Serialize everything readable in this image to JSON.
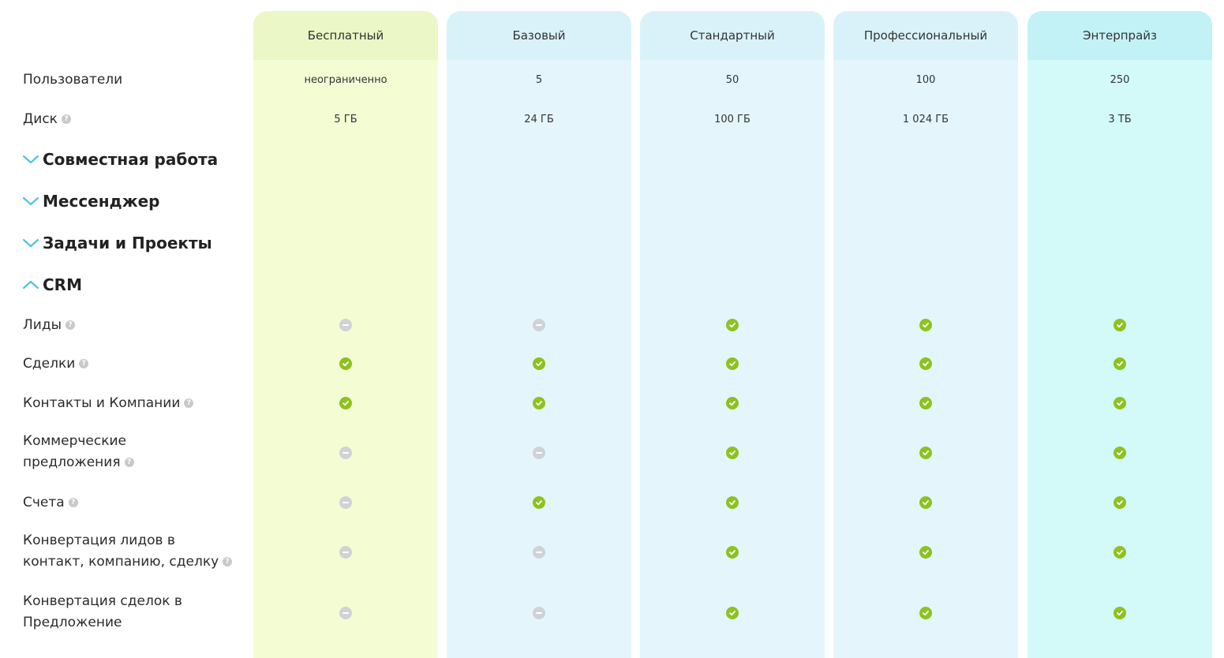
{
  "plans": [
    {
      "label": "Бесплатный"
    },
    {
      "label": "Базовый"
    },
    {
      "label": "Стандартный"
    },
    {
      "label": "Профессиональный"
    },
    {
      "label": "Энтерпрайз"
    }
  ],
  "rows": {
    "users": {
      "label": "Пользователи",
      "values": [
        "неограниченно",
        "5",
        "50",
        "100",
        "250"
      ]
    },
    "disk": {
      "label": "Диск",
      "values": [
        "5 ГБ",
        "24 ГБ",
        "100 ГБ",
        "1 024 ГБ",
        "3 ТБ"
      ]
    }
  },
  "sections": [
    {
      "label": "Совместная работа",
      "expanded": false
    },
    {
      "label": "Мессенджер",
      "expanded": false
    },
    {
      "label": "Задачи и Проекты",
      "expanded": false
    },
    {
      "label": "CRM",
      "expanded": true
    }
  ],
  "crm_features": [
    {
      "label": "Лиды",
      "availability": [
        false,
        false,
        true,
        true,
        true
      ]
    },
    {
      "label": "Сделки",
      "availability": [
        true,
        true,
        true,
        true,
        true
      ]
    },
    {
      "label": "Контакты и Компании",
      "availability": [
        true,
        true,
        true,
        true,
        true
      ]
    },
    {
      "label_lines": [
        "Коммерческие",
        "предложения"
      ],
      "availability": [
        false,
        false,
        true,
        true,
        true
      ]
    },
    {
      "label": "Счета",
      "availability": [
        false,
        true,
        true,
        true,
        true
      ]
    },
    {
      "label_lines": [
        "Конвертация лидов в",
        "контакт, компанию, сделку"
      ],
      "availability": [
        false,
        false,
        true,
        true,
        true
      ]
    },
    {
      "label_lines": [
        "Конвертация сделок в",
        "Предложение"
      ],
      "availability": [
        false,
        false,
        true,
        true,
        true
      ]
    }
  ],
  "colors": {
    "available": "#8dc21f",
    "unavailable": "#cfd3d6",
    "chevron": "#4cc3e8"
  },
  "icons": {
    "available": "check-circle-icon",
    "unavailable": "minus-circle-icon",
    "help": "question-circle-icon",
    "collapsed": "chevron-down-icon",
    "expanded": "chevron-up-icon"
  }
}
